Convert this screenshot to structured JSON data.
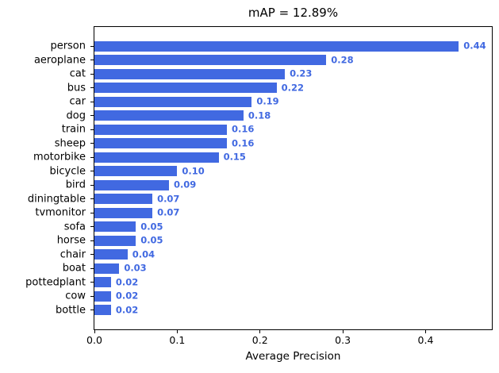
{
  "chart_data": {
    "type": "bar",
    "orientation": "horizontal",
    "title": "mAP = 12.89%",
    "xlabel": "Average Precision",
    "ylabel": "",
    "categories": [
      "person",
      "aeroplane",
      "cat",
      "bus",
      "car",
      "dog",
      "train",
      "sheep",
      "motorbike",
      "bicycle",
      "bird",
      "diningtable",
      "tvmonitor",
      "sofa",
      "horse",
      "chair",
      "boat",
      "pottedplant",
      "cow",
      "bottle"
    ],
    "values": [
      0.44,
      0.28,
      0.23,
      0.22,
      0.19,
      0.18,
      0.16,
      0.16,
      0.15,
      0.1,
      0.09,
      0.07,
      0.07,
      0.05,
      0.05,
      0.04,
      0.03,
      0.02,
      0.02,
      0.02
    ],
    "value_labels": [
      "0.44",
      "0.28",
      "0.23",
      "0.22",
      "0.19",
      "0.18",
      "0.16",
      "0.16",
      "0.15",
      "0.10",
      "0.09",
      "0.07",
      "0.07",
      "0.05",
      "0.05",
      "0.04",
      "0.03",
      "0.02",
      "0.02",
      "0.02"
    ],
    "xticks": [
      0.0,
      0.1,
      0.2,
      0.3,
      0.4
    ],
    "xtick_labels": [
      "0.0",
      "0.1",
      "0.2",
      "0.3",
      "0.4"
    ],
    "xlim": [
      0,
      0.48
    ],
    "grid": false,
    "legend": null,
    "bar_color": "#4169E1",
    "value_label_color": "#4169E1",
    "axis_color": "#000000",
    "background_color": "#ffffff"
  }
}
